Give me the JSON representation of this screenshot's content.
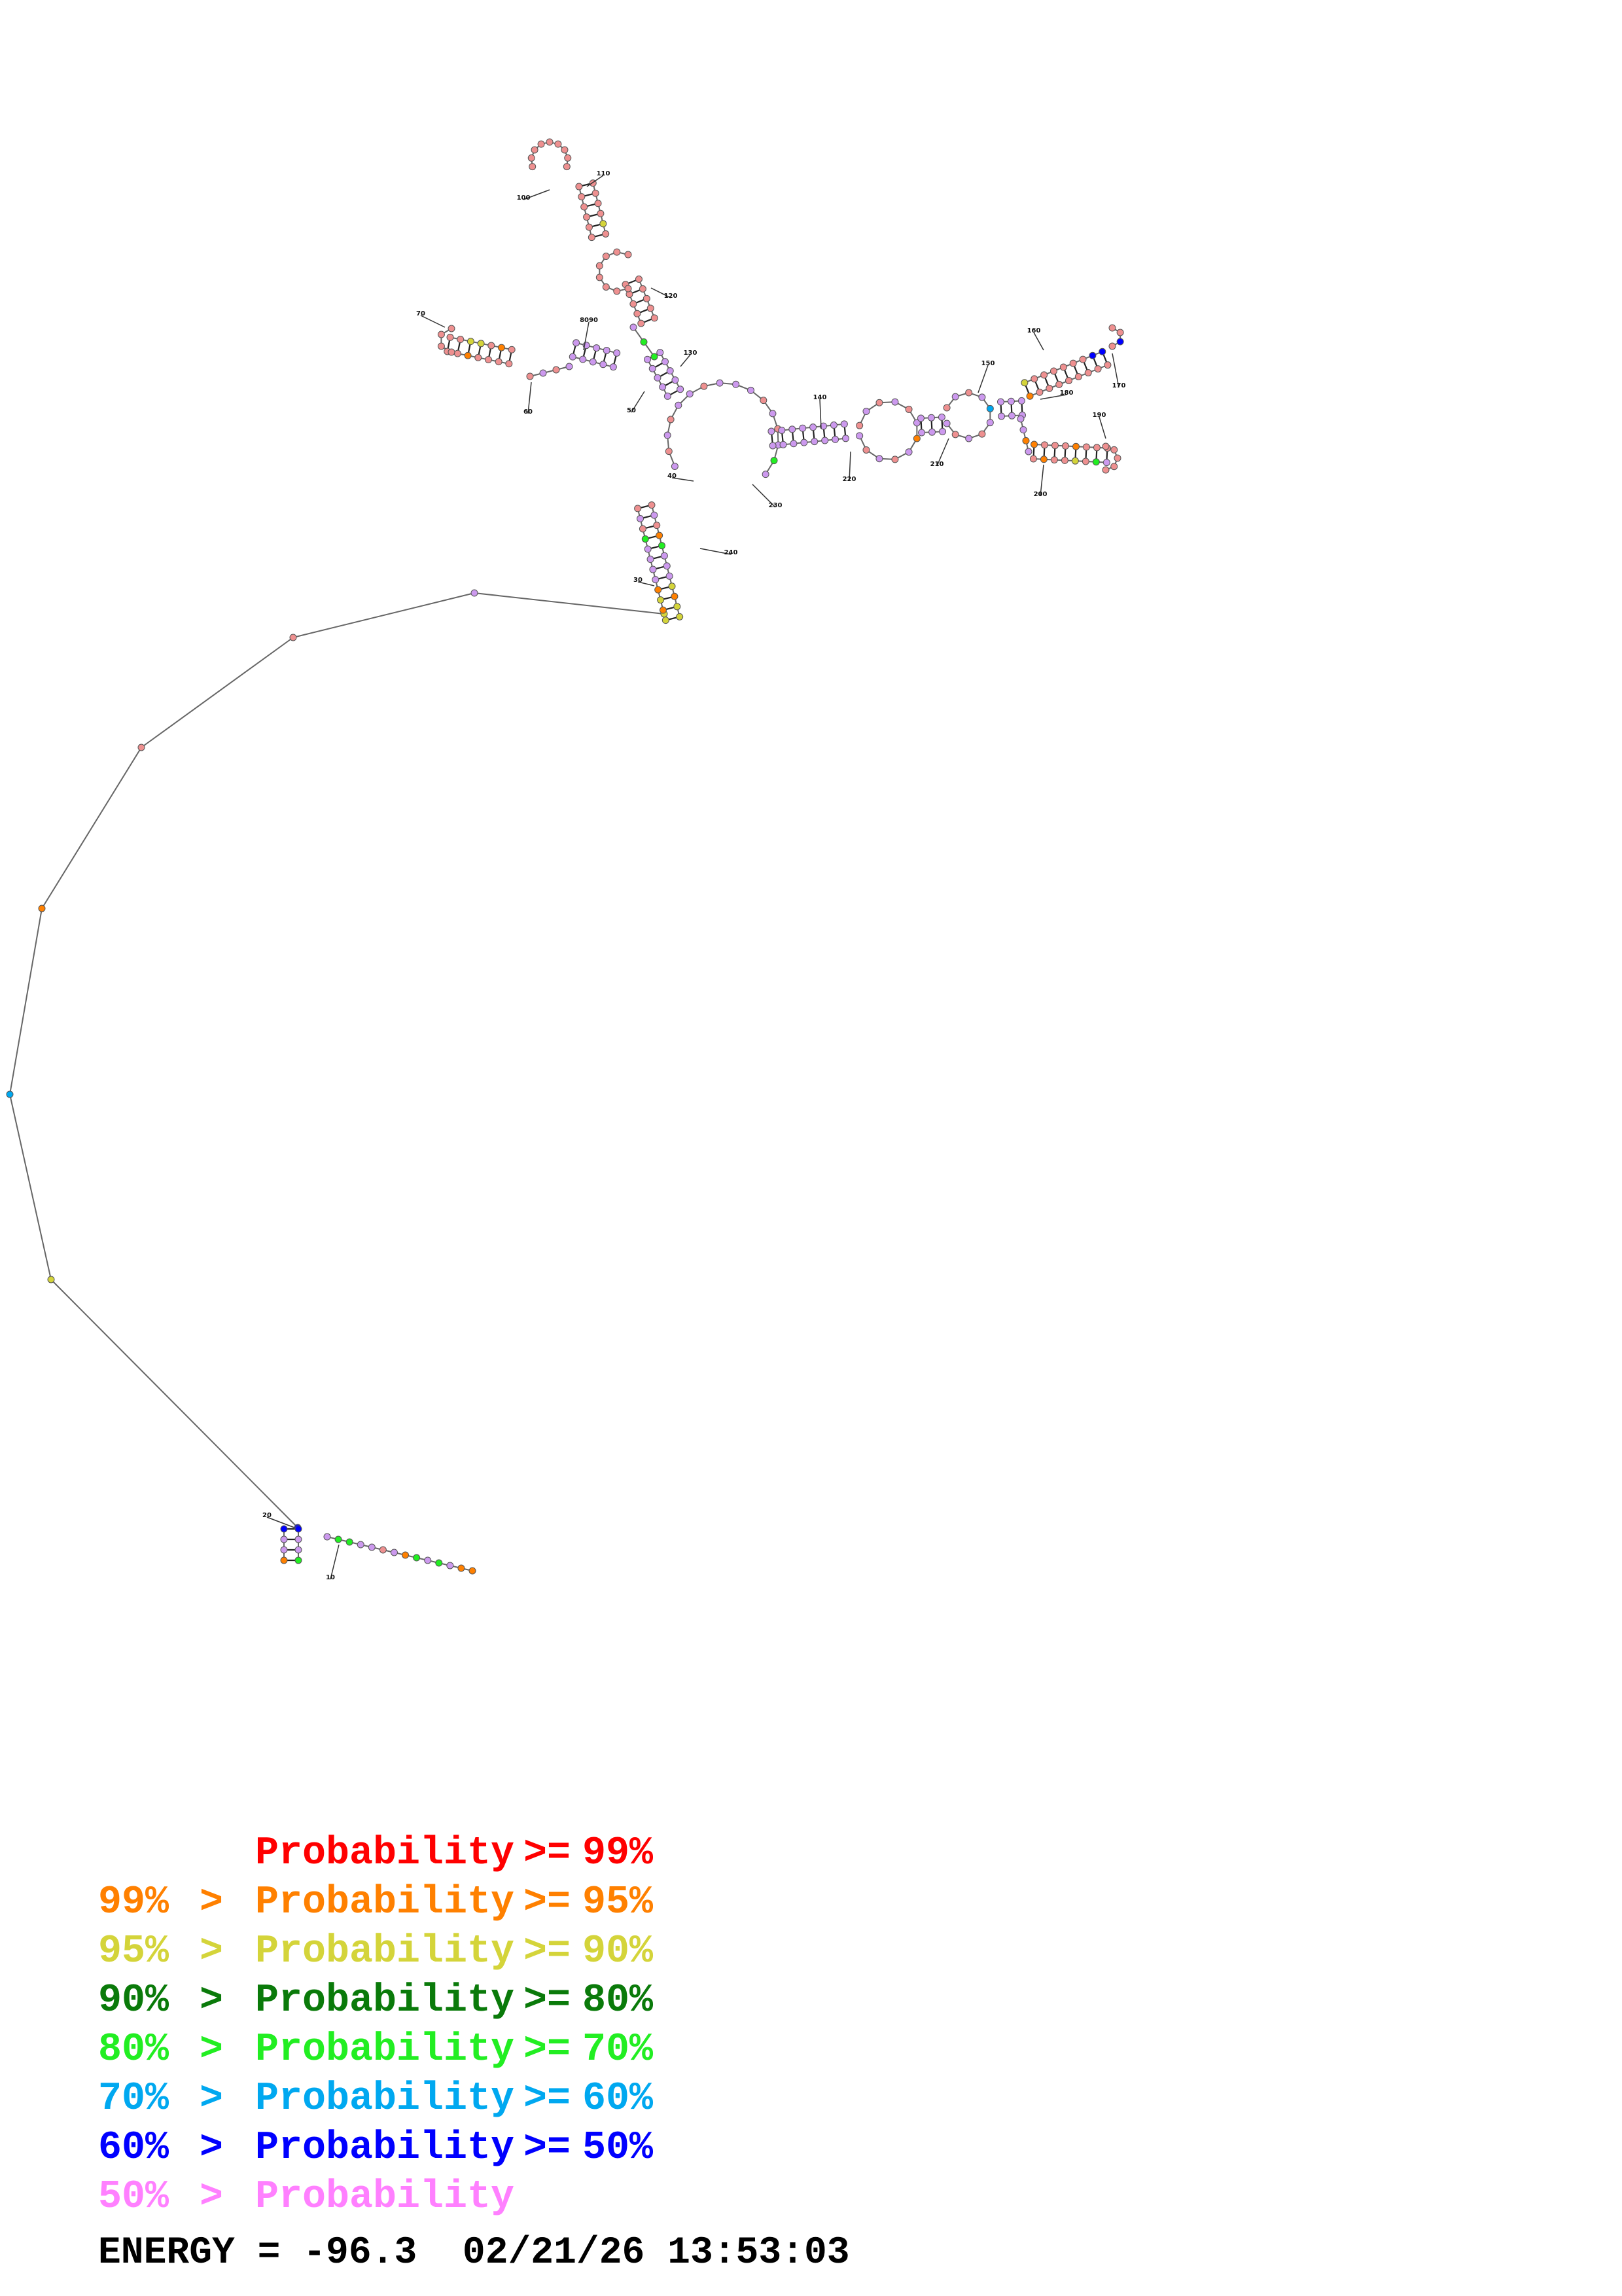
{
  "colors": {
    "p99": "#ff0000",
    "p95": "#ff8000",
    "p90": "#d4d43a",
    "p80": "#0a7a0a",
    "p70": "#22ee22",
    "p60": "#00a8f0",
    "p50": "#0000ff",
    "plow": "#ff80ff",
    "lilac": "#cc99ee",
    "salmon": "#ee9090"
  },
  "position_labels": [
    "10",
    "20",
    "30",
    "40",
    "50",
    "60",
    "70",
    "8090",
    "100",
    "110",
    "120",
    "130",
    "140",
    "150",
    "160",
    "170",
    "180",
    "190",
    "200",
    "210",
    "220",
    "230",
    "240"
  ],
  "legend": [
    {
      "lower": "",
      "gt": "",
      "label": "Probability",
      "ge": ">=",
      "upper": "99%",
      "color": "#ff0000"
    },
    {
      "lower": "99%",
      "gt": ">",
      "label": "Probability",
      "ge": ">=",
      "upper": "95%",
      "color": "#ff8000"
    },
    {
      "lower": "95%",
      "gt": ">",
      "label": "Probability",
      "ge": ">=",
      "upper": "90%",
      "color": "#d4d43a"
    },
    {
      "lower": "90%",
      "gt": ">",
      "label": "Probability",
      "ge": ">=",
      "upper": "80%",
      "color": "#0a7a0a"
    },
    {
      "lower": "80%",
      "gt": ">",
      "label": "Probability",
      "ge": ">=",
      "upper": "70%",
      "color": "#22ee22"
    },
    {
      "lower": "70%",
      "gt": ">",
      "label": "Probability",
      "ge": ">=",
      "upper": "60%",
      "color": "#00a8f0"
    },
    {
      "lower": "60%",
      "gt": ">",
      "label": "Probability",
      "ge": ">=",
      "upper": "50%",
      "color": "#0000ff"
    },
    {
      "lower": "50%",
      "gt": ">",
      "label": "Probability",
      "ge": "",
      "upper": "",
      "color": "#ff80ff"
    }
  ],
  "energy_line": "ENERGY = -96.3  02/21/26 13:53:03"
}
